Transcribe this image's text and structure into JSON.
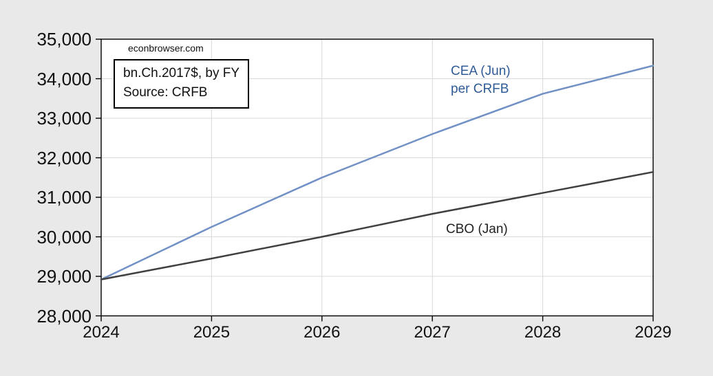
{
  "watermark": "econbrowser.com",
  "note_box": {
    "line1": "bn.Ch.2017$, by FY",
    "line2": "Source: CRFB"
  },
  "annotations": {
    "cea_line1": "CEA (Jun)",
    "cea_line2": "per CRFB",
    "cbo": "CBO (Jan)"
  },
  "chart_data": {
    "type": "line",
    "title": "",
    "xlabel": "",
    "ylabel": "",
    "x": [
      2024,
      2025,
      2026,
      2027,
      2028,
      2029
    ],
    "x_tick_labels": [
      "2024",
      "2025",
      "2026",
      "2027",
      "2028",
      "2029"
    ],
    "y_tick_labels": [
      "28,000",
      "29,000",
      "30,000",
      "31,000",
      "32,000",
      "33,000",
      "34,000",
      "35,000"
    ],
    "xlim": [
      2024,
      2029
    ],
    "ylim": [
      28000,
      35000
    ],
    "y_tick_step": 1000,
    "grid": true,
    "legend_position": "inline-annotations",
    "unit_note": "bn.Ch.2017$, by FY",
    "source": "Source: CRFB",
    "watermark": "econbrowser.com",
    "series": [
      {
        "name": "CEA (Jun) per CRFB",
        "color": "#7090C6",
        "values": [
          28920,
          30250,
          31500,
          32600,
          33620,
          34330
        ]
      },
      {
        "name": "CBO (Jan)",
        "color": "#404040",
        "values": [
          28920,
          29450,
          30000,
          30580,
          31110,
          31640
        ]
      }
    ],
    "colors": {
      "outer_bg": "#E9E9E9",
      "plot_bg": "#FFFFFF",
      "grid": "#D9D9D9",
      "frame": "#000000",
      "tick": "#000000",
      "cea_label": "#2E5B97",
      "cbo_label": "#1F1F1F"
    }
  }
}
